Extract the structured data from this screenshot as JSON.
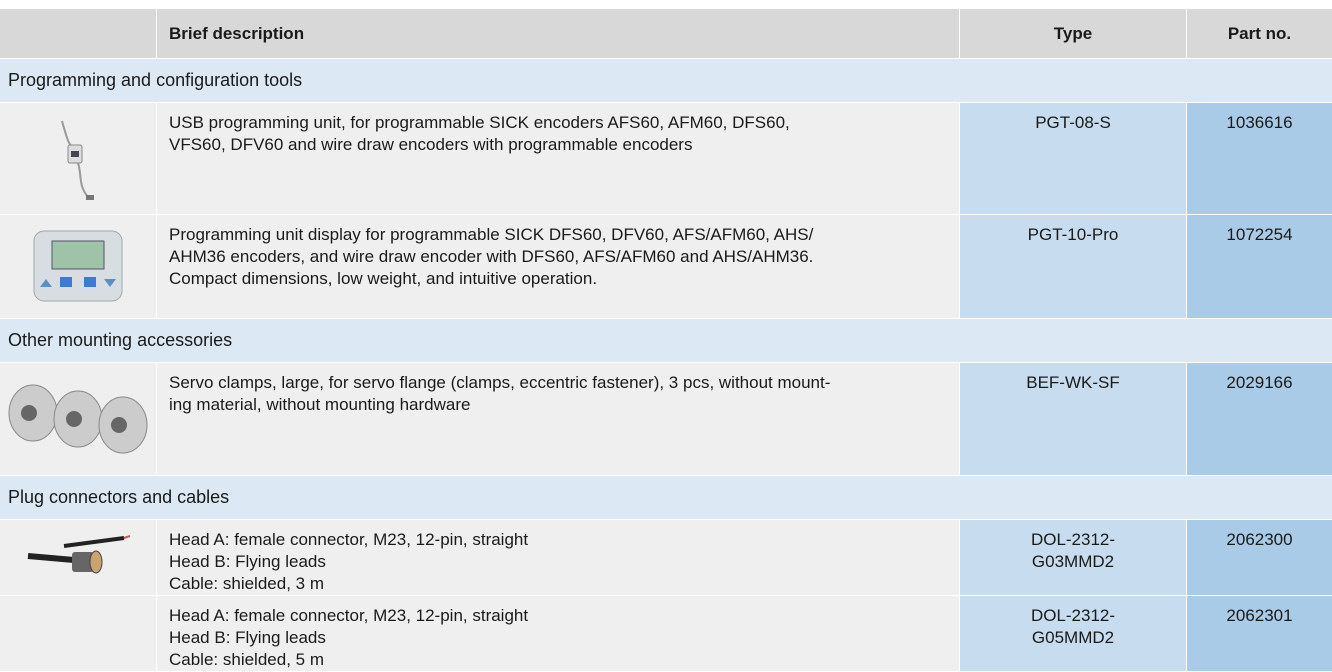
{
  "header": {
    "columns": [
      "Brief description",
      "Type",
      "Part no."
    ]
  },
  "sections": [
    {
      "title": "Programming and configuration tools",
      "rows": [
        {
          "description": [
            "USB programming unit, for programmable SICK encoders AFS60, AFM60, DFS60,",
            "VFS60, DFV60 and wire draw encoders with programmable encoders"
          ],
          "type": [
            "PGT-08-S"
          ],
          "part": "1036616"
        },
        {
          "description": [
            "Programming unit display for programmable SICK DFS60, DFV60, AFS/AFM60, AHS/",
            "AHM36 encoders, and wire draw encoder with DFS60, AFS/AFM60 and AHS/AHM36.",
            "Compact dimensions, low weight, and intuitive operation."
          ],
          "type": [
            "PGT-10-Pro"
          ],
          "part": "1072254"
        }
      ]
    },
    {
      "title": "Other mounting accessories",
      "rows": [
        {
          "description": [
            "Servo clamps, large, for servo flange (clamps, eccentric fastener), 3 pcs, without mount-",
            "ing material, without mounting hardware"
          ],
          "type": [
            "BEF-WK-SF"
          ],
          "part": "2029166"
        }
      ]
    },
    {
      "title": "Plug connectors and cables",
      "rows": [
        {
          "description": [
            "Head A: female connector, M23, 12-pin, straight",
            "Head B: Flying leads",
            "Cable: shielded, 3 m"
          ],
          "type": [
            "DOL-2312-",
            "G03MMD2"
          ],
          "part": "2062300"
        },
        {
          "description": [
            "Head A: female connector, M23, 12-pin, straight",
            "Head B: Flying leads",
            "Cable: shielded, 5 m"
          ],
          "type": [
            "DOL-2312-",
            "G05MMD2"
          ],
          "part": "2062301"
        }
      ]
    }
  ]
}
